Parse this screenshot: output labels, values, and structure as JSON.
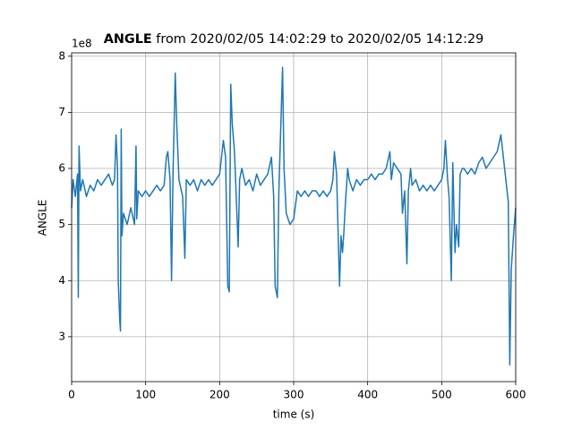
{
  "chart_data": {
    "type": "line",
    "title_bold": "ANGLE",
    "title": " from 2020/02/05 14:02:29 to 2020/02/05 14:12:29",
    "offset_text": "1e8",
    "xlabel": "time (s)",
    "ylabel": "ANGLE",
    "x": [
      0,
      2,
      5,
      8,
      9,
      10,
      12,
      15,
      20,
      25,
      30,
      35,
      40,
      45,
      50,
      55,
      58,
      60,
      62,
      63,
      65,
      66,
      67,
      68,
      70,
      75,
      80,
      85,
      87,
      88,
      90,
      95,
      100,
      105,
      110,
      115,
      120,
      125,
      128,
      130,
      133,
      135,
      137,
      140,
      142,
      145,
      150,
      153,
      155,
      160,
      165,
      170,
      175,
      180,
      185,
      190,
      195,
      200,
      205,
      208,
      211,
      213,
      215,
      217,
      220,
      223,
      225,
      227,
      230,
      235,
      240,
      245,
      250,
      255,
      260,
      265,
      270,
      273,
      275,
      278,
      280,
      285,
      287,
      290,
      295,
      300,
      305,
      310,
      315,
      320,
      325,
      330,
      335,
      340,
      345,
      350,
      353,
      355,
      358,
      360,
      362,
      364,
      366,
      368,
      370,
      373,
      375,
      380,
      385,
      390,
      395,
      400,
      405,
      410,
      415,
      420,
      425,
      430,
      432,
      435,
      440,
      445,
      447,
      450,
      453,
      455,
      458,
      460,
      465,
      470,
      475,
      480,
      485,
      490,
      495,
      500,
      503,
      505,
      508,
      510,
      513,
      515,
      518,
      520,
      523,
      525,
      528,
      530,
      535,
      540,
      545,
      550,
      555,
      560,
      565,
      570,
      575,
      580,
      585,
      590,
      592,
      594,
      597,
      600
    ],
    "series": [
      {
        "name": "ANGLE",
        "color": "#1f77b4",
        "values": [
          5.3,
          5.8,
          5.5,
          5.9,
          3.7,
          6.4,
          5.6,
          5.8,
          5.5,
          5.7,
          5.6,
          5.8,
          5.7,
          5.8,
          5.9,
          5.7,
          5.8,
          6.6,
          6.0,
          4.0,
          3.3,
          3.1,
          6.7,
          4.8,
          5.2,
          5.0,
          5.3,
          5.0,
          6.4,
          5.1,
          5.6,
          5.5,
          5.6,
          5.5,
          5.6,
          5.7,
          5.6,
          5.7,
          6.2,
          6.3,
          5.8,
          4.0,
          5.9,
          7.7,
          6.8,
          5.8,
          5.5,
          4.4,
          5.8,
          5.7,
          5.8,
          5.6,
          5.8,
          5.7,
          5.8,
          5.7,
          5.8,
          5.9,
          6.5,
          6.2,
          3.9,
          3.8,
          7.5,
          6.8,
          6.3,
          5.3,
          4.6,
          5.8,
          6.0,
          5.7,
          5.8,
          5.6,
          5.9,
          5.7,
          5.8,
          5.9,
          6.2,
          5.5,
          3.9,
          3.7,
          5.6,
          7.8,
          6.0,
          5.2,
          5.0,
          5.1,
          5.6,
          5.5,
          5.6,
          5.5,
          5.6,
          5.6,
          5.5,
          5.6,
          5.5,
          5.6,
          5.8,
          6.3,
          5.9,
          4.9,
          3.9,
          4.8,
          4.5,
          4.9,
          5.4,
          6.0,
          5.8,
          5.6,
          5.8,
          5.7,
          5.8,
          5.8,
          5.9,
          5.8,
          5.9,
          5.9,
          6.0,
          6.3,
          5.8,
          6.1,
          6.0,
          5.9,
          5.2,
          5.6,
          4.3,
          5.6,
          6.0,
          5.7,
          5.8,
          5.6,
          5.7,
          5.6,
          5.7,
          5.6,
          5.7,
          5.8,
          6.0,
          6.5,
          5.8,
          5.5,
          4.0,
          6.1,
          4.5,
          5.0,
          4.6,
          5.9,
          6.0,
          6.0,
          5.9,
          6.0,
          5.9,
          6.1,
          6.2,
          6.0,
          6.1,
          6.2,
          6.3,
          6.6,
          6.0,
          5.4,
          2.5,
          4.2,
          4.8,
          5.3
        ]
      }
    ],
    "xlim": [
      0,
      600
    ],
    "xticks": [
      0,
      100,
      200,
      300,
      400,
      500,
      600
    ],
    "ylim": [
      2.2,
      8.06
    ],
    "yticks": [
      3,
      4,
      5,
      6,
      7,
      8
    ],
    "grid": true
  }
}
